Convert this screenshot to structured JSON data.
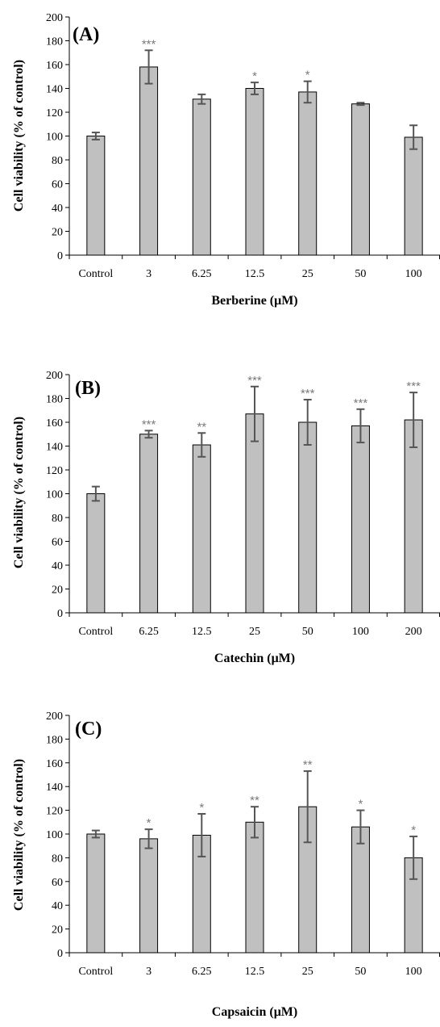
{
  "chart_data": [
    {
      "type": "bar",
      "panel_label": "(A)",
      "xlabel": "Berberine (μM)",
      "ylabel": "Cell viability (% of control)",
      "ylim": [
        0,
        200
      ],
      "yticks": [
        0,
        20,
        40,
        60,
        80,
        100,
        120,
        140,
        160,
        180,
        200
      ],
      "categories": [
        "Control",
        "3",
        "6.25",
        "12.5",
        "25",
        "50",
        "100"
      ],
      "values": [
        100,
        158,
        131,
        140,
        137,
        127,
        99
      ],
      "errors": [
        3,
        14,
        4,
        5,
        9,
        1,
        10
      ],
      "significance": [
        "",
        "***",
        "",
        "*",
        "*",
        "",
        ""
      ],
      "bar_color": "#c0c0c0",
      "error_color": "#555555",
      "star_color": "#7a7a7a"
    },
    {
      "type": "bar",
      "panel_label": "(B)",
      "xlabel": "Catechin (μM)",
      "ylabel": "Cell viability (% of control)",
      "ylim": [
        0,
        200
      ],
      "yticks": [
        0,
        20,
        40,
        60,
        80,
        100,
        120,
        140,
        160,
        180,
        200
      ],
      "categories": [
        "Control",
        "6.25",
        "12.5",
        "25",
        "50",
        "100",
        "200"
      ],
      "values": [
        100,
        150,
        141,
        167,
        160,
        157,
        162
      ],
      "errors": [
        6,
        3,
        10,
        23,
        19,
        14,
        23
      ],
      "significance": [
        "",
        "***",
        "**",
        "***",
        "***",
        "***",
        "***"
      ],
      "bar_color": "#c0c0c0",
      "error_color": "#555555",
      "star_color": "#7a7a7a"
    },
    {
      "type": "bar",
      "panel_label": "(C)",
      "xlabel": "Capsaicin (μM)",
      "ylabel": "Cell viability (% of control)",
      "ylim": [
        0,
        200
      ],
      "yticks": [
        0,
        20,
        40,
        60,
        80,
        100,
        120,
        140,
        160,
        180,
        200
      ],
      "categories": [
        "Control",
        "3",
        "6.25",
        "12.5",
        "25",
        "50",
        "100"
      ],
      "values": [
        100,
        96,
        99,
        110,
        123,
        106,
        80
      ],
      "errors": [
        3,
        8,
        18,
        13,
        30,
        14,
        18
      ],
      "significance": [
        "",
        "*",
        "*",
        "**",
        "**",
        "*",
        "*"
      ],
      "bar_color": "#c0c0c0",
      "error_color": "#555555",
      "star_color": "#7a7a7a"
    }
  ]
}
